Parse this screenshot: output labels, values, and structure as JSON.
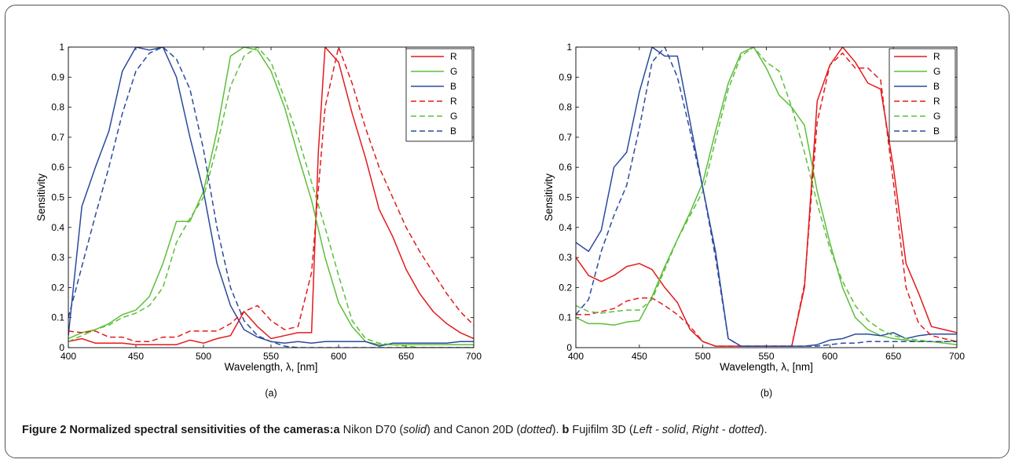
{
  "caption": {
    "lead": "Figure 2 Normalized spectral sensitivities of the cameras:",
    "a_label": "a",
    "a_text1": " Nikon D70 (",
    "a_solid": "solid",
    "a_text2": ") and Canon 20D (",
    "a_dotted": "dotted",
    "a_text3": "). ",
    "b_label": "b",
    "b_text1": " Fujifilm 3D (",
    "b_left": "Left - solid",
    "b_text2": ", ",
    "b_right": "Right - dotted",
    "b_text3": ")."
  },
  "colors": {
    "R": "#e31a1c",
    "G": "#5cbf3a",
    "B": "#2b4a9e"
  },
  "chart_data": [
    {
      "type": "line",
      "panel_label": "(a)",
      "xlabel": "Wavelength,  λ, [nm]",
      "ylabel": "Sensitivity",
      "xlim": [
        400,
        700
      ],
      "ylim": [
        0,
        1
      ],
      "xticks": [
        400,
        450,
        500,
        550,
        600,
        650,
        700
      ],
      "yticks": [
        0,
        0.1,
        0.2,
        0.3,
        0.4,
        0.5,
        0.6,
        0.7,
        0.8,
        0.9,
        1
      ],
      "grid": false,
      "legend": "top-right",
      "series": [
        {
          "name": "R",
          "style": "solid",
          "color": "#e31a1c",
          "x": [
            400,
            410,
            420,
            430,
            440,
            450,
            460,
            470,
            480,
            490,
            500,
            510,
            520,
            530,
            540,
            550,
            560,
            570,
            580,
            585,
            590,
            600,
            610,
            620,
            630,
            640,
            650,
            660,
            670,
            680,
            690,
            700
          ],
          "y": [
            0.02,
            0.03,
            0.015,
            0.015,
            0.015,
            0.01,
            0.01,
            0.01,
            0.01,
            0.025,
            0.015,
            0.03,
            0.04,
            0.12,
            0.07,
            0.03,
            0.04,
            0.05,
            0.05,
            0.65,
            1.0,
            0.95,
            0.78,
            0.63,
            0.46,
            0.37,
            0.26,
            0.18,
            0.12,
            0.08,
            0.05,
            0.03
          ]
        },
        {
          "name": "G",
          "style": "solid",
          "color": "#5cbf3a",
          "x": [
            400,
            410,
            420,
            430,
            440,
            450,
            460,
            470,
            480,
            490,
            500,
            510,
            520,
            530,
            540,
            550,
            560,
            570,
            580,
            590,
            600,
            610,
            620,
            630,
            640,
            650,
            660,
            670,
            680,
            690,
            700
          ],
          "y": [
            0.03,
            0.05,
            0.06,
            0.08,
            0.11,
            0.125,
            0.17,
            0.28,
            0.42,
            0.42,
            0.52,
            0.72,
            0.97,
            1.0,
            0.99,
            0.92,
            0.8,
            0.64,
            0.49,
            0.3,
            0.15,
            0.07,
            0.02,
            0.01,
            0.01,
            0.01,
            0.01,
            0.01,
            0.01,
            0.01,
            0.01
          ]
        },
        {
          "name": "B",
          "style": "solid",
          "color": "#2b4a9e",
          "x": [
            400,
            410,
            420,
            430,
            440,
            450,
            460,
            470,
            480,
            490,
            500,
            510,
            520,
            530,
            540,
            550,
            560,
            570,
            580,
            590,
            600,
            610,
            620,
            630,
            640,
            650,
            660,
            670,
            680,
            690,
            700
          ],
          "y": [
            0.04,
            0.47,
            0.6,
            0.72,
            0.92,
            1.0,
            0.99,
            1.0,
            0.9,
            0.7,
            0.52,
            0.28,
            0.14,
            0.06,
            0.035,
            0.02,
            0.015,
            0.02,
            0.015,
            0.02,
            0.02,
            0.02,
            0.02,
            0.005,
            0.015,
            0.015,
            0.015,
            0.015,
            0.015,
            0.02,
            0.02
          ]
        },
        {
          "name": "R",
          "style": "dashed",
          "color": "#e31a1c",
          "x": [
            400,
            410,
            420,
            430,
            440,
            450,
            460,
            470,
            480,
            490,
            500,
            510,
            520,
            530,
            540,
            550,
            560,
            570,
            580,
            590,
            600,
            610,
            620,
            630,
            640,
            650,
            660,
            670,
            680,
            690,
            700
          ],
          "y": [
            0.055,
            0.05,
            0.055,
            0.035,
            0.035,
            0.02,
            0.02,
            0.035,
            0.035,
            0.055,
            0.055,
            0.055,
            0.08,
            0.12,
            0.14,
            0.09,
            0.06,
            0.07,
            0.25,
            0.8,
            1.0,
            0.88,
            0.73,
            0.6,
            0.5,
            0.4,
            0.32,
            0.25,
            0.18,
            0.12,
            0.075
          ]
        },
        {
          "name": "G",
          "style": "dashed",
          "color": "#5cbf3a",
          "x": [
            400,
            410,
            420,
            430,
            440,
            450,
            460,
            470,
            480,
            490,
            500,
            510,
            520,
            530,
            540,
            550,
            560,
            570,
            580,
            590,
            600,
            610,
            620,
            630,
            640,
            650,
            660,
            670,
            680,
            690,
            700
          ],
          "y": [
            0.02,
            0.04,
            0.06,
            0.075,
            0.1,
            0.115,
            0.14,
            0.2,
            0.35,
            0.43,
            0.5,
            0.67,
            0.87,
            0.97,
            1.0,
            0.95,
            0.83,
            0.7,
            0.55,
            0.4,
            0.24,
            0.09,
            0.03,
            0.015,
            0.01,
            0.005,
            0.0,
            0.0,
            0.0,
            0.0,
            0.0
          ]
        },
        {
          "name": "B",
          "style": "dashed",
          "color": "#2b4a9e",
          "x": [
            400,
            410,
            420,
            430,
            440,
            450,
            460,
            470,
            480,
            490,
            500,
            510,
            520,
            530,
            540,
            550,
            560,
            570,
            580,
            590,
            600,
            610,
            620,
            630,
            640,
            650,
            660,
            670,
            680,
            690,
            700
          ],
          "y": [
            0.1,
            0.27,
            0.44,
            0.6,
            0.78,
            0.92,
            0.98,
            1.0,
            0.96,
            0.86,
            0.66,
            0.4,
            0.2,
            0.09,
            0.04,
            0.02,
            0.005,
            0.0,
            0.0,
            0.0,
            0.0,
            0.0,
            0.0,
            0.0,
            0.0,
            0.0,
            0.0,
            0.0,
            0.0,
            0.0,
            0.0
          ]
        }
      ]
    },
    {
      "type": "line",
      "panel_label": "(b)",
      "xlabel": "Wavelength,  λ, [nm]",
      "ylabel": "Sensitivity",
      "xlim": [
        400,
        700
      ],
      "ylim": [
        0,
        1
      ],
      "xticks": [
        400,
        450,
        500,
        550,
        600,
        650,
        700
      ],
      "yticks": [
        0,
        0.1,
        0.2,
        0.3,
        0.4,
        0.5,
        0.6,
        0.7,
        0.8,
        0.9,
        1
      ],
      "grid": false,
      "legend": "top-right",
      "series": [
        {
          "name": "R",
          "style": "solid",
          "color": "#e31a1c",
          "x": [
            400,
            410,
            420,
            430,
            440,
            450,
            460,
            470,
            480,
            490,
            500,
            510,
            520,
            530,
            540,
            550,
            560,
            570,
            580,
            590,
            600,
            610,
            620,
            630,
            640,
            650,
            660,
            670,
            680,
            690,
            700
          ],
          "y": [
            0.3,
            0.24,
            0.22,
            0.24,
            0.27,
            0.28,
            0.26,
            0.2,
            0.15,
            0.06,
            0.02,
            0.005,
            0.005,
            0.005,
            0.005,
            0.005,
            0.005,
            0.005,
            0.2,
            0.82,
            0.94,
            1.0,
            0.95,
            0.88,
            0.86,
            0.6,
            0.28,
            0.18,
            0.07,
            0.06,
            0.05
          ]
        },
        {
          "name": "G",
          "style": "solid",
          "color": "#5cbf3a",
          "x": [
            400,
            410,
            420,
            430,
            440,
            450,
            460,
            470,
            480,
            490,
            500,
            510,
            520,
            530,
            540,
            550,
            560,
            570,
            580,
            590,
            600,
            610,
            620,
            630,
            640,
            650,
            660,
            670,
            680,
            690,
            700
          ],
          "y": [
            0.1,
            0.08,
            0.08,
            0.075,
            0.085,
            0.09,
            0.17,
            0.27,
            0.36,
            0.45,
            0.55,
            0.72,
            0.88,
            0.98,
            1.0,
            0.93,
            0.84,
            0.8,
            0.74,
            0.52,
            0.35,
            0.2,
            0.1,
            0.06,
            0.04,
            0.03,
            0.025,
            0.02,
            0.02,
            0.015,
            0.01
          ]
        },
        {
          "name": "B",
          "style": "solid",
          "color": "#2b4a9e",
          "x": [
            400,
            410,
            420,
            430,
            440,
            450,
            460,
            470,
            480,
            490,
            500,
            510,
            520,
            530,
            540,
            550,
            560,
            570,
            580,
            590,
            600,
            610,
            620,
            630,
            640,
            650,
            660,
            670,
            680,
            690,
            700
          ],
          "y": [
            0.35,
            0.32,
            0.39,
            0.6,
            0.65,
            0.85,
            1.0,
            0.97,
            0.97,
            0.75,
            0.53,
            0.32,
            0.03,
            0.005,
            0.005,
            0.005,
            0.005,
            0.005,
            0.005,
            0.01,
            0.025,
            0.03,
            0.045,
            0.045,
            0.04,
            0.05,
            0.03,
            0.04,
            0.045,
            0.045,
            0.045
          ]
        },
        {
          "name": "R",
          "style": "dashed",
          "color": "#e31a1c",
          "x": [
            400,
            410,
            420,
            430,
            440,
            450,
            460,
            470,
            480,
            490,
            500,
            510,
            520,
            530,
            540,
            550,
            560,
            570,
            580,
            590,
            600,
            610,
            620,
            630,
            640,
            650,
            660,
            670,
            680,
            690,
            700
          ],
          "y": [
            0.11,
            0.11,
            0.12,
            0.13,
            0.155,
            0.165,
            0.165,
            0.14,
            0.11,
            0.07,
            0.02,
            0.005,
            0.005,
            0.005,
            0.005,
            0.005,
            0.005,
            0.005,
            0.21,
            0.75,
            0.94,
            0.98,
            0.93,
            0.93,
            0.89,
            0.55,
            0.2,
            0.08,
            0.04,
            0.03,
            0.02
          ]
        },
        {
          "name": "G",
          "style": "dashed",
          "color": "#5cbf3a",
          "x": [
            400,
            410,
            420,
            430,
            440,
            450,
            460,
            470,
            480,
            490,
            500,
            510,
            520,
            530,
            540,
            550,
            560,
            570,
            580,
            590,
            600,
            610,
            620,
            630,
            640,
            650,
            660,
            670,
            680,
            690,
            700
          ],
          "y": [
            0.14,
            0.12,
            0.115,
            0.12,
            0.125,
            0.125,
            0.16,
            0.26,
            0.36,
            0.44,
            0.52,
            0.69,
            0.86,
            0.97,
            1.0,
            0.95,
            0.92,
            0.8,
            0.65,
            0.48,
            0.33,
            0.22,
            0.14,
            0.09,
            0.06,
            0.04,
            0.03,
            0.025,
            0.02,
            0.02,
            0.02
          ]
        },
        {
          "name": "B",
          "style": "dashed",
          "color": "#2b4a9e",
          "x": [
            400,
            410,
            420,
            430,
            440,
            450,
            460,
            470,
            480,
            490,
            500,
            510,
            520,
            530,
            540,
            550,
            560,
            570,
            580,
            590,
            600,
            610,
            620,
            630,
            640,
            650,
            660,
            670,
            680,
            690,
            700
          ],
          "y": [
            0.11,
            0.16,
            0.32,
            0.44,
            0.54,
            0.73,
            0.95,
            1.0,
            0.9,
            0.72,
            0.53,
            0.3,
            0.03,
            0.005,
            0.005,
            0.005,
            0.005,
            0.005,
            0.005,
            0.005,
            0.01,
            0.015,
            0.015,
            0.02,
            0.02,
            0.02,
            0.02,
            0.02,
            0.02,
            0.02,
            0.02
          ]
        }
      ]
    }
  ]
}
